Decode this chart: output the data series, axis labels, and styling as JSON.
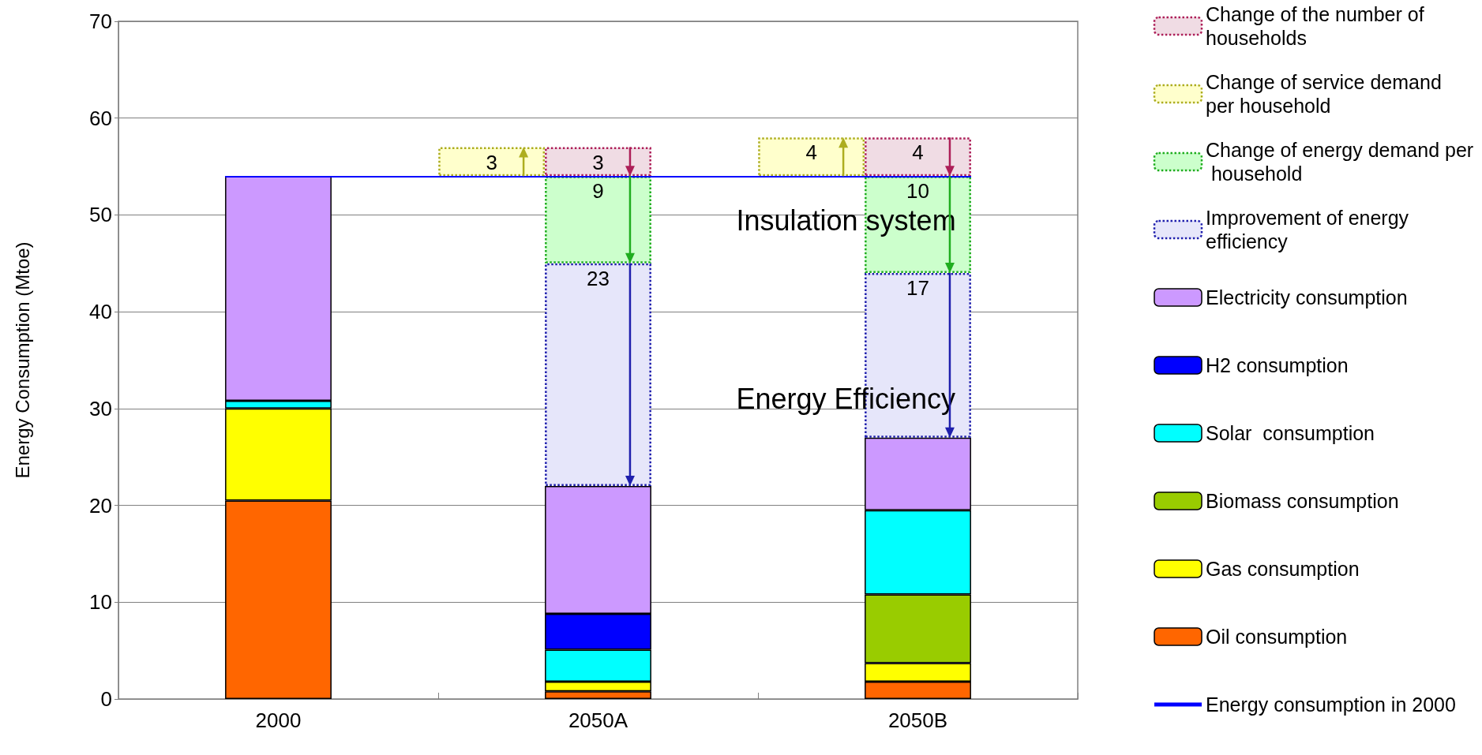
{
  "chart_data": {
    "type": "bar",
    "ylabel": "Energy Consumption (Mtoe)",
    "categories": [
      "2000",
      "2050A",
      "2050B"
    ],
    "ylim": [
      0,
      70
    ],
    "yticks": [
      0,
      10,
      20,
      30,
      40,
      50,
      60,
      70
    ],
    "grid": "y",
    "legend": "right",
    "series": [
      {
        "name": "Change of the number of households",
        "color": "#f0dce4",
        "base": [
          null,
          57,
          58
        ],
        "values": [
          null,
          -3,
          -4
        ],
        "value_labels": [
          null,
          "3",
          "4"
        ],
        "line_style": "dotted"
      },
      {
        "name": "Change of service demand per household",
        "color": "#ffffcc",
        "base": [
          null,
          54,
          54
        ],
        "values": [
          null,
          3,
          4
        ],
        "value_labels": [
          null,
          "3",
          "4"
        ],
        "line_style": "dotted"
      },
      {
        "name": "Change of energy demand per household",
        "color": "#ccffcc",
        "base": [
          null,
          54,
          54
        ],
        "values": [
          null,
          -9,
          -10
        ],
        "value_labels": [
          null,
          "9",
          "10"
        ],
        "line_style": "dotted"
      },
      {
        "name": "Improvement of energy efficiency",
        "color": "#e6e6fa",
        "base": [
          null,
          45,
          44
        ],
        "values": [
          null,
          -23,
          -17
        ],
        "value_labels": [
          null,
          "23",
          "17"
        ],
        "line_style": "dotted"
      },
      {
        "name": "Electricity consumption",
        "color": "#cc99ff",
        "base": [
          30.8,
          8.8,
          19.5
        ],
        "values": [
          23.2,
          13.2,
          7.5
        ]
      },
      {
        "name": "H2 consumption",
        "color": "#0000ff",
        "base": [
          null,
          5.1,
          null
        ],
        "values": [
          null,
          3.7,
          null
        ]
      },
      {
        "name": "Solar  consumption",
        "color": "#00ffff",
        "base": [
          30,
          1.8,
          10.8
        ],
        "values": [
          0.8,
          3.3,
          8.7
        ]
      },
      {
        "name": "Biomass consumption",
        "color": "#99cc00",
        "base": [
          null,
          null,
          3.7
        ],
        "values": [
          null,
          null,
          7.1
        ]
      },
      {
        "name": "Gas consumption",
        "color": "#ffff00",
        "base": [
          20.5,
          0.8,
          1.8
        ],
        "values": [
          9.5,
          1,
          1.9
        ]
      },
      {
        "name": "Oil consumption",
        "color": "#ff6600",
        "base": [
          0,
          0,
          0
        ],
        "values": [
          20.5,
          0.8,
          1.8
        ]
      }
    ],
    "ref_lines": [
      {
        "axis": "y",
        "value": 54,
        "label": "Energy consumption in 2000",
        "color": "#0000ff"
      }
    ],
    "annotations": [
      {
        "text": "Insulation system",
        "x": "2050B",
        "y": 54
      },
      {
        "text": "Energy Efficiency",
        "x": "2050B",
        "y": 27
      }
    ]
  }
}
